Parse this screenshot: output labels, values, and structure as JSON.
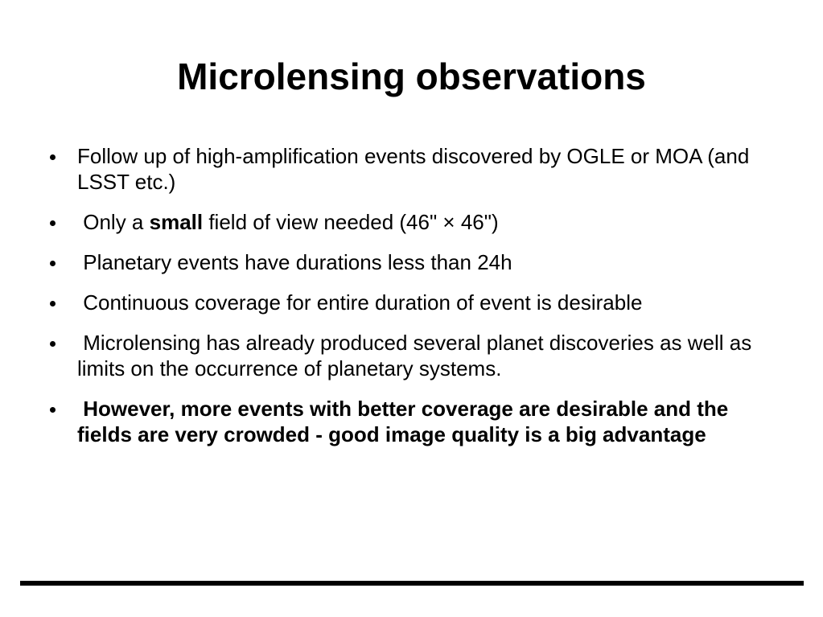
{
  "slide": {
    "title": "Microlensing observations",
    "bullets": [
      {
        "text": "Follow up of high-amplification events discovered by OGLE or MOA (and LSST etc.)"
      },
      {
        "prefix": " Only a ",
        "emphasis": "small",
        "suffix": " field of view needed (46\" × 46\")"
      },
      {
        "text": " Planetary events have durations less than 24h"
      },
      {
        "text": " Continuous coverage for entire duration of event is desirable"
      },
      {
        "text": " Microlensing has already produced several planet discoveries as well as limits on the occurrence of planetary systems."
      },
      {
        "text": " However, more events with better coverage are desirable and the fields are very crowded - good image quality is a big advantage"
      }
    ]
  }
}
